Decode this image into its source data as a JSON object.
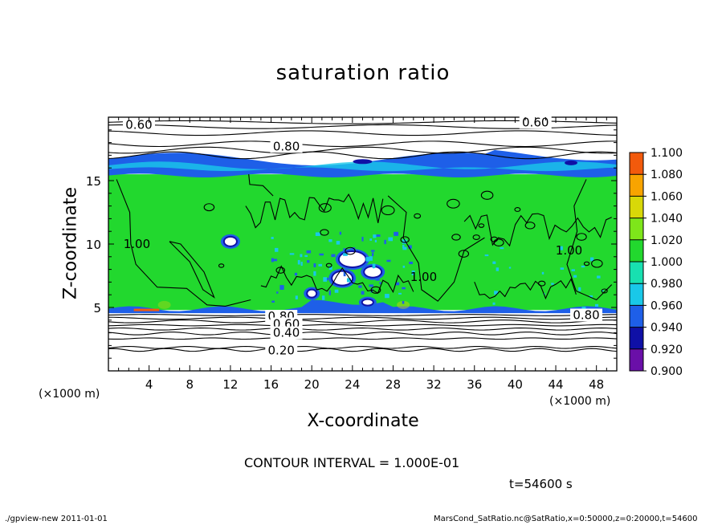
{
  "chart_data": {
    "type": "heatmap",
    "title": "saturation ratio",
    "xlabel": "X-coordinate",
    "ylabel": "Z-coordinate",
    "x_unit": "(×1000 m)",
    "z_unit": "(×1000 m)",
    "xlim": [
      0,
      50
    ],
    "ylim": [
      0,
      20
    ],
    "x_ticks": [
      4,
      8,
      12,
      16,
      20,
      24,
      28,
      32,
      36,
      40,
      44,
      48
    ],
    "y_ticks": [
      5,
      10,
      15
    ],
    "colorbar": {
      "levels": [
        "0.900",
        "0.920",
        "0.940",
        "0.960",
        "0.980",
        "1.000",
        "1.020",
        "1.040",
        "1.060",
        "1.080",
        "1.100"
      ],
      "colors": [
        "#6a0fa8",
        "#0f10a6",
        "#1e5fe8",
        "#19c8e8",
        "#18e0b0",
        "#22d82e",
        "#7ee61a",
        "#d8d808",
        "#f8a400",
        "#f25a0c",
        "#f49898"
      ]
    },
    "field_regions": [
      {
        "name": "unsaturated upper layer",
        "z_range": [
          16.5,
          20
        ],
        "value_range": [
          0.2,
          0.85
        ]
      },
      {
        "name": "cloud top band",
        "z_range": [
          15.5,
          16.5
        ],
        "value_range": [
          0.9,
          0.96
        ]
      },
      {
        "name": "saturated cloud layer",
        "z_range": [
          4.8,
          15.5
        ],
        "value": 1.0
      },
      {
        "name": "cloud base band",
        "z_range": [
          4.6,
          4.9
        ],
        "value_range": [
          0.9,
          0.96
        ]
      },
      {
        "name": "unsaturated lower layer",
        "z_range": [
          0,
          4.6
        ],
        "value_range": [
          0.2,
          0.8
        ]
      }
    ],
    "contour_labels": [
      {
        "text": "0.60",
        "x": 3,
        "z": 19.4
      },
      {
        "text": "0.60",
        "x": 42,
        "z": 19.6
      },
      {
        "text": "0.80",
        "x": 17.5,
        "z": 17.7
      },
      {
        "text": "1.00",
        "x": 2.8,
        "z": 10
      },
      {
        "text": "1.00",
        "x": 31,
        "z": 7.4
      },
      {
        "text": "1.00",
        "x": 45.3,
        "z": 9.5
      },
      {
        "text": "0.80",
        "x": 17,
        "z": 4.3
      },
      {
        "text": "0.60",
        "x": 17.5,
        "z": 3.7
      },
      {
        "text": "0.40",
        "x": 17.5,
        "z": 3.0
      },
      {
        "text": "0.20",
        "x": 17,
        "z": 1.6
      },
      {
        "text": "0.80",
        "x": 47,
        "z": 4.4
      }
    ],
    "grid": false
  },
  "contour_interval": "CONTOUR INTERVAL = 1.000E-01",
  "time_label": "t=54600 s",
  "footer": {
    "left": "./gpview-new   2011-01-01",
    "right": "MarsCond_SatRatio.nc@SatRatio,x=0:50000,z=0:20000,t=54600"
  }
}
